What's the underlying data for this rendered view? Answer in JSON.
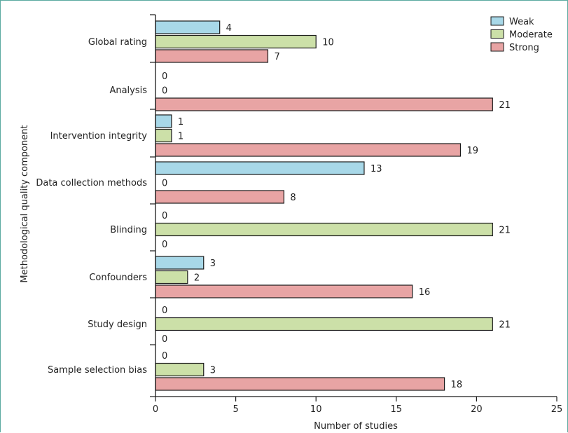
{
  "chart_data": {
    "type": "bar",
    "orientation": "horizontal",
    "xlabel": "Number of studies",
    "ylabel": "Methodological quality component",
    "xlim": [
      0,
      25
    ],
    "xticks": [
      0,
      5,
      10,
      15,
      20,
      25
    ],
    "grid": false,
    "legend_position": "top-right",
    "categories": [
      "Global rating",
      "Analysis",
      "Intervention integrity",
      "Data collection methods",
      "Blinding",
      "Confounders",
      "Study design",
      "Sample selection bias"
    ],
    "series": [
      {
        "name": "Weak",
        "color": "#a8d8e8",
        "values": [
          4,
          0,
          1,
          13,
          0,
          3,
          0,
          0
        ]
      },
      {
        "name": "Moderate",
        "color": "#cce0a8",
        "values": [
          10,
          0,
          1,
          0,
          21,
          2,
          21,
          3
        ]
      },
      {
        "name": "Strong",
        "color": "#e8a4a4",
        "values": [
          7,
          21,
          19,
          8,
          0,
          16,
          0,
          18
        ]
      }
    ]
  }
}
